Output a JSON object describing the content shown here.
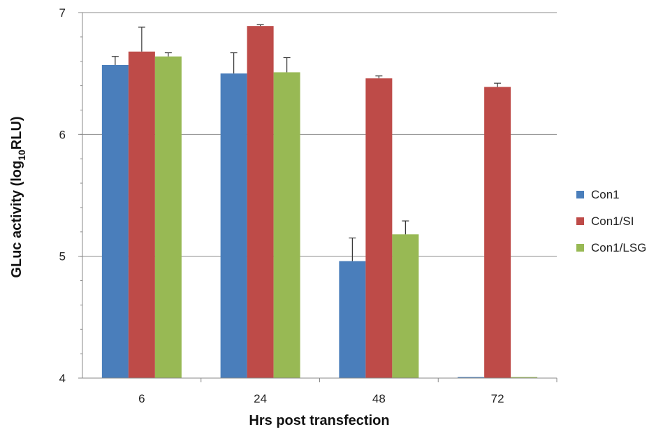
{
  "chart_data": {
    "type": "bar",
    "title": "",
    "xlabel": "Hrs post transfection",
    "ylabel_main": "GLuc activity (log",
    "ylabel_sub": "10",
    "ylabel_end": "RLU)",
    "categories": [
      "6",
      "24",
      "48",
      "72"
    ],
    "ylim": [
      4,
      7
    ],
    "yticks": [
      "4",
      "5",
      "6",
      "7"
    ],
    "grid": true,
    "legend_position": "right",
    "series": [
      {
        "name": "Con1",
        "color": "#4a7ebb",
        "values": [
          6.57,
          6.5,
          4.96,
          4.0
        ],
        "errors": [
          0.07,
          0.17,
          0.19,
          0.0
        ]
      },
      {
        "name": "Con1/SI",
        "color": "#be4b48",
        "values": [
          6.68,
          6.89,
          6.46,
          6.39
        ],
        "errors": [
          0.2,
          0.01,
          0.02,
          0.03
        ]
      },
      {
        "name": "Con1/LSG",
        "color": "#98b954",
        "values": [
          6.64,
          6.51,
          5.18,
          4.0
        ],
        "errors": [
          0.03,
          0.12,
          0.11,
          0.0
        ]
      }
    ]
  }
}
